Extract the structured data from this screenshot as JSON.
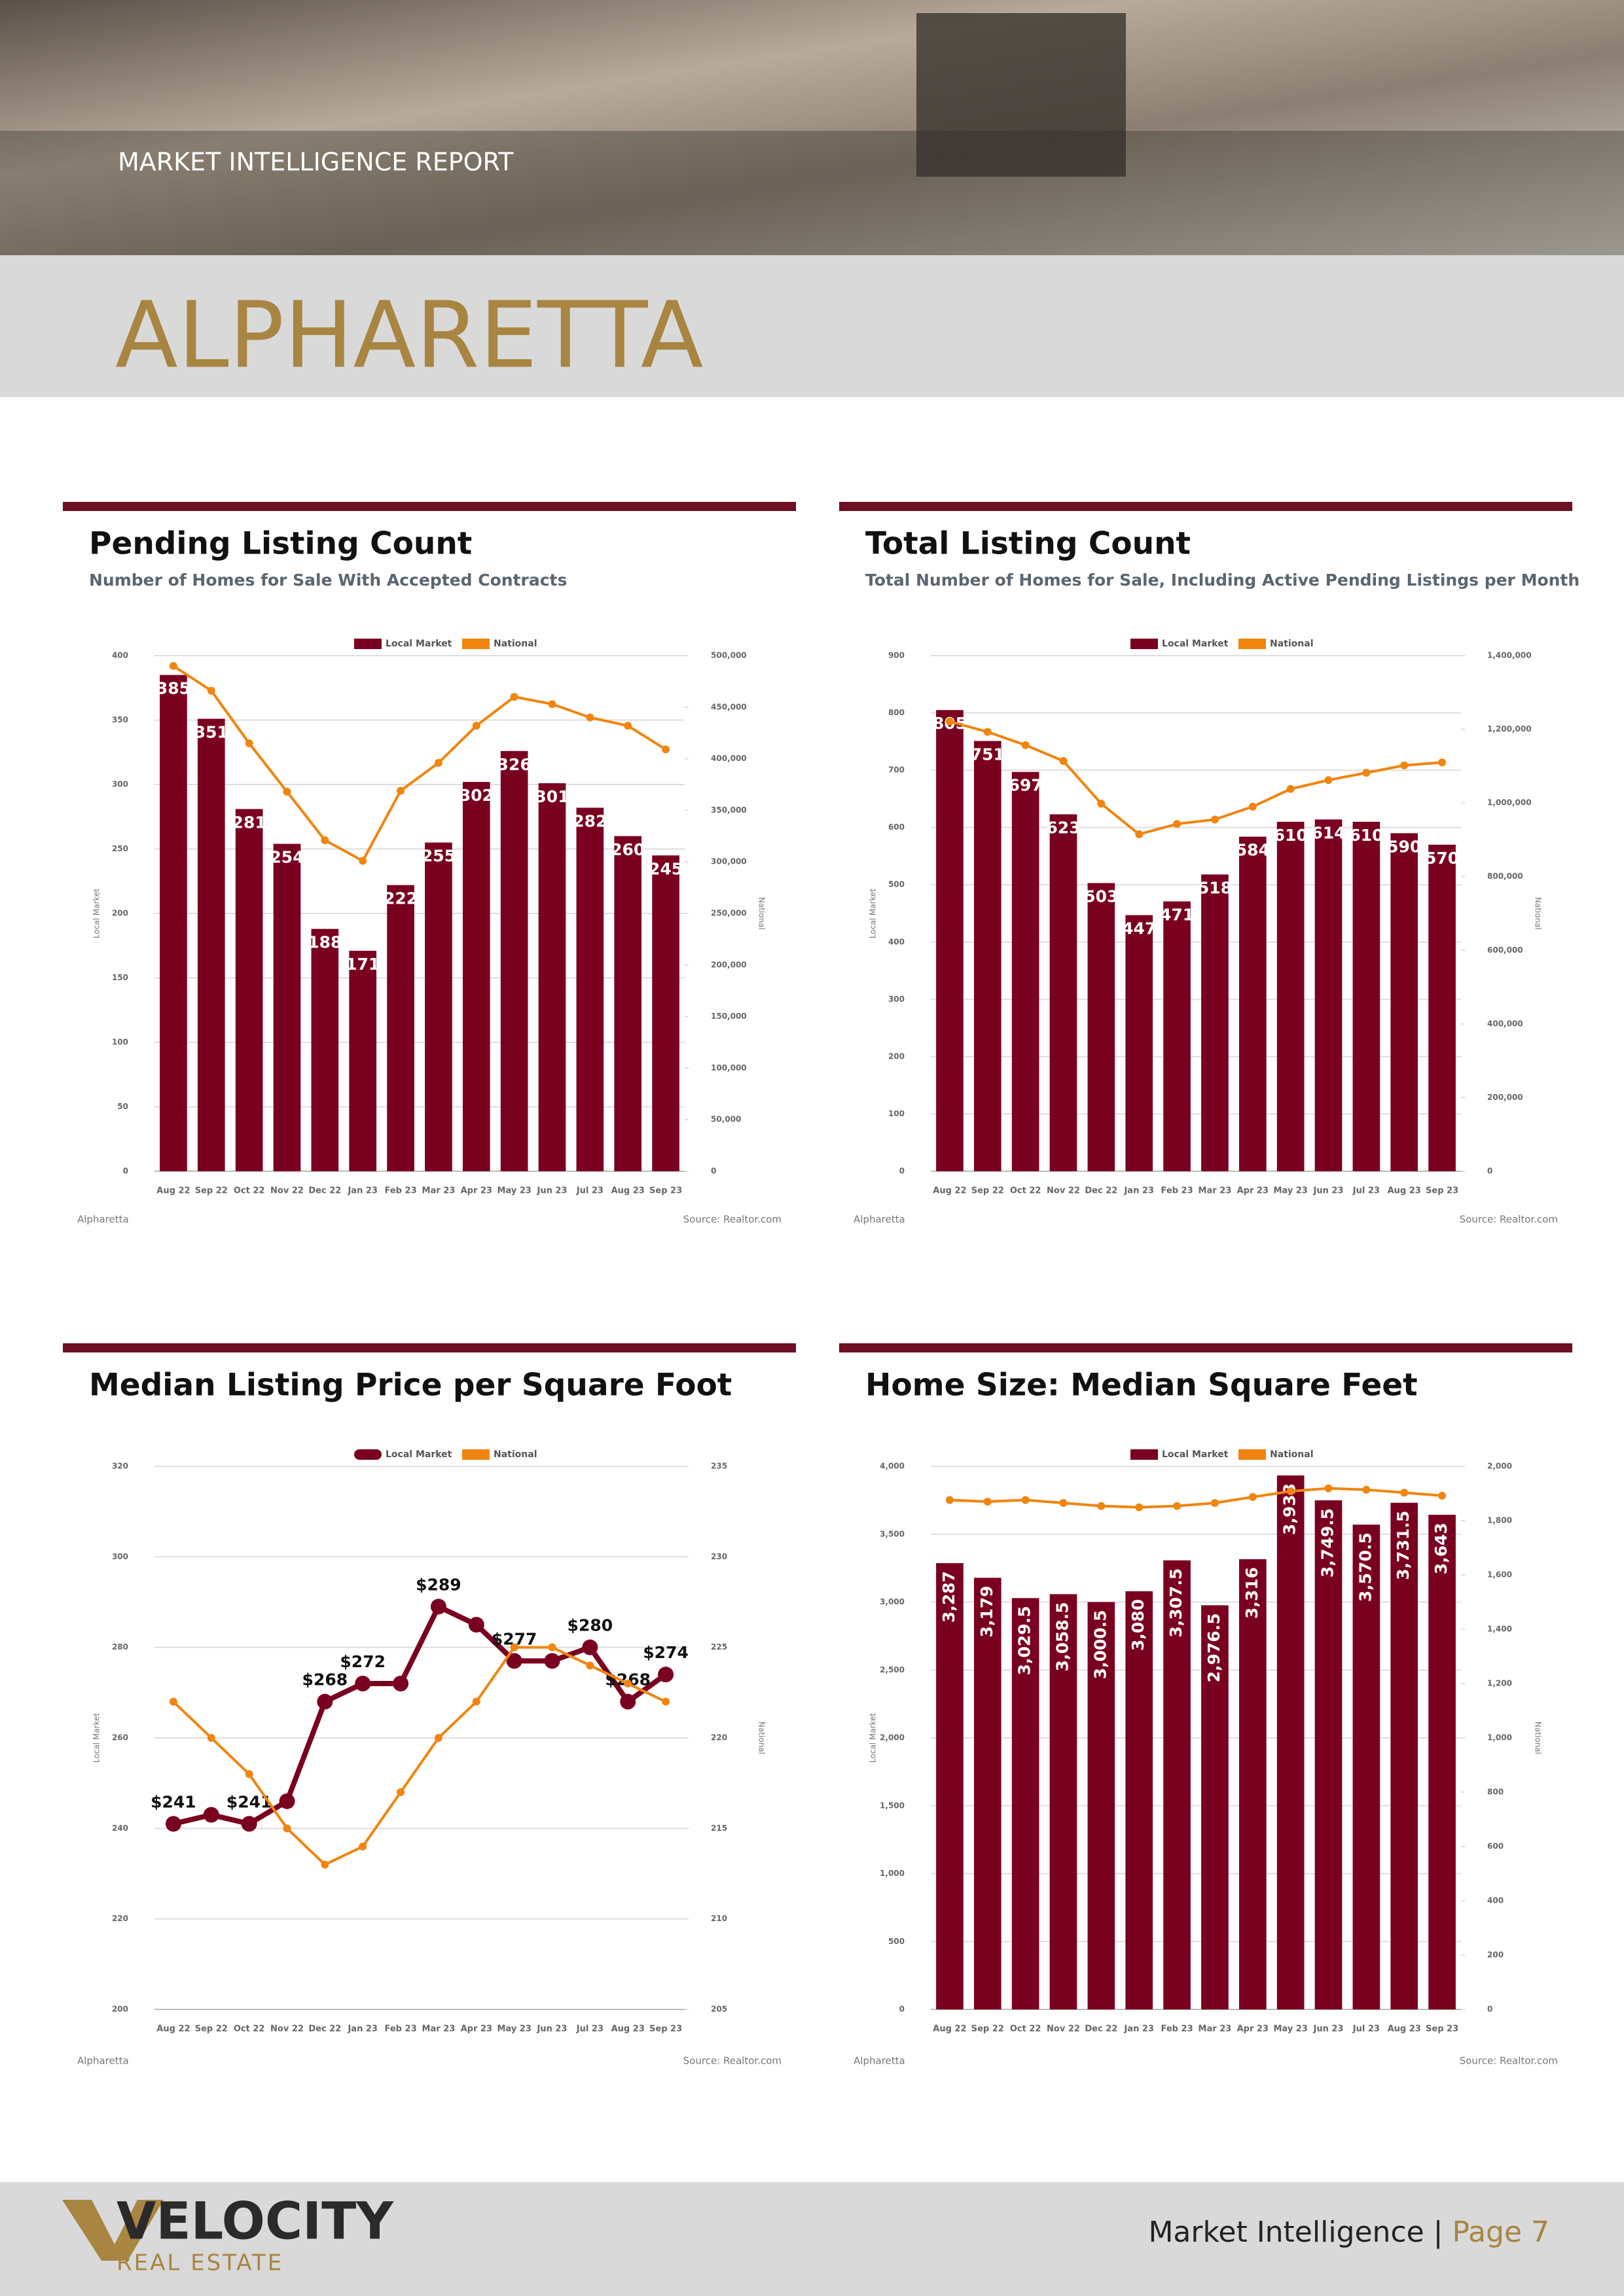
{
  "header": {
    "report_label": "MARKET INTELLIGENCE REPORT",
    "city": "ALPHARETTA"
  },
  "chart_data": [
    {
      "type": "bar",
      "title": "Pending Listing Count",
      "subtitle": "Number of Homes for Sale With Accepted Contracts",
      "categories": [
        "Aug 22",
        "Sep 22",
        "Oct 22",
        "Nov 22",
        "Dec 22",
        "Jan 23",
        "Feb 23",
        "Mar 23",
        "Apr 23",
        "May 23",
        "Jun 23",
        "Jul 23",
        "Aug 23",
        "Sep 23"
      ],
      "y_label": "Local Market",
      "y2_label": "National",
      "series": [
        {
          "name": "Local Market",
          "type": "bar",
          "color": "#7a0020",
          "values": [
            385,
            351,
            281,
            254,
            188,
            171,
            222,
            255,
            302,
            326,
            301,
            282,
            260,
            245
          ]
        },
        {
          "name": "National",
          "type": "line",
          "axis": "y2",
          "color": "#f0850f",
          "values": [
            490000,
            466000,
            415000,
            368000,
            321000,
            301000,
            369000,
            396000,
            432000,
            460000,
            453000,
            440000,
            432000,
            409000
          ]
        }
      ],
      "ylim": [
        0,
        400
      ],
      "yticks": [
        0,
        50,
        100,
        150,
        200,
        250,
        300,
        350,
        400
      ],
      "y2lim": [
        0,
        500000
      ],
      "y2ticks": [
        0,
        {
          "value": 50000,
          "label": "50,000"
        },
        {
          "value": 100000,
          "label": "100,000"
        },
        {
          "value": 150000,
          "label": "150,000"
        },
        {
          "value": 200000,
          "label": "200,000"
        },
        {
          "value": 250000,
          "label": "250,000"
        },
        {
          "value": 300000,
          "label": "300,000"
        },
        {
          "value": 350000,
          "label": "350,000"
        },
        {
          "value": 400000,
          "label": "400,000"
        },
        {
          "value": 450000,
          "label": "450,000"
        },
        {
          "value": 500000,
          "label": "500,000"
        }
      ],
      "grid": true,
      "legend": "top",
      "footnote": "Alpharetta",
      "source": "Source: Realtor.com"
    },
    {
      "type": "bar",
      "title": "Total Listing Count",
      "subtitle": "Total Number of Homes for Sale, Including Active Pending Listings per Month",
      "categories": [
        "Aug 22",
        "Sep 22",
        "Oct 22",
        "Nov 22",
        "Dec 22",
        "Jan 23",
        "Feb 23",
        "Mar 23",
        "Apr 23",
        "May 23",
        "Jun 23",
        "Jul 23",
        "Aug 23",
        "Sep 23"
      ],
      "y_label": "Local Market",
      "y2_label": "National",
      "series": [
        {
          "name": "Local Market",
          "type": "bar",
          "color": "#7a0020",
          "values": [
            805,
            751,
            697,
            623,
            503,
            447,
            471,
            518,
            584,
            610,
            614,
            610,
            590,
            570
          ]
        },
        {
          "name": "National",
          "type": "line",
          "axis": "y2",
          "color": "#f0850f",
          "values": [
            1221000,
            1193000,
            1157000,
            1114000,
            998000,
            915000,
            943000,
            955000,
            990000,
            1038000,
            1062000,
            1082000,
            1102000,
            1110000
          ]
        }
      ],
      "ylim": [
        0,
        900
      ],
      "yticks": [
        0,
        100,
        200,
        300,
        400,
        500,
        600,
        700,
        800,
        900
      ],
      "y2lim": [
        0,
        1400000
      ],
      "y2ticks": [
        0,
        {
          "value": 200000,
          "label": "200,000"
        },
        {
          "value": 400000,
          "label": "400,000"
        },
        {
          "value": 600000,
          "label": "600,000"
        },
        {
          "value": 800000,
          "label": "800,000"
        },
        {
          "value": 1000000,
          "label": "1,000,000"
        },
        {
          "value": 1200000,
          "label": "1,200,000"
        },
        {
          "value": 1400000,
          "label": "1,400,000"
        }
      ],
      "grid": true,
      "legend": "top",
      "footnote": "Alpharetta",
      "source": "Source: Realtor.com"
    },
    {
      "type": "line",
      "title": "Median Listing Price per Square Foot",
      "categories": [
        "Aug 22",
        "Sep 22",
        "Oct 22",
        "Nov 22",
        "Dec 22",
        "Jan 23",
        "Feb 23",
        "Mar 23",
        "Apr 23",
        "May 23",
        "Jun 23",
        "Jul 23",
        "Aug 23",
        "Sep 23"
      ],
      "y_label": "Local Market",
      "y2_label": "National",
      "series": [
        {
          "name": "Local Market",
          "type": "line",
          "color": "#7a0020",
          "values": [
            241,
            243,
            241,
            246,
            268,
            272,
            272,
            289,
            285,
            277,
            277,
            280,
            268,
            274
          ],
          "value_labels": [
            "$241",
            null,
            "$241",
            null,
            "$268",
            "$272",
            null,
            "$289",
            null,
            "$277",
            null,
            "$280",
            "$268",
            "$274"
          ]
        },
        {
          "name": "National",
          "type": "line",
          "axis": "y2",
          "color": "#f0850f",
          "values": [
            222,
            220,
            218,
            215,
            213,
            214,
            217,
            220,
            222,
            225,
            225,
            224,
            223,
            222
          ]
        }
      ],
      "ylim": [
        200,
        320
      ],
      "yticks": [
        200,
        220,
        240,
        260,
        280,
        300,
        320
      ],
      "y2lim": [
        205,
        235
      ],
      "y2ticks": [
        205,
        210,
        215,
        220,
        225,
        230,
        235
      ],
      "grid": true,
      "legend": "top",
      "footnote": "Alpharetta",
      "source": "Source: Realtor.com"
    },
    {
      "type": "bar",
      "title": "Home Size: Median Square Feet",
      "categories": [
        "Aug 22",
        "Sep 22",
        "Oct 22",
        "Nov 22",
        "Dec 22",
        "Jan 23",
        "Feb 23",
        "Mar 23",
        "Apr 23",
        "May 23",
        "Jun 23",
        "Jul 23",
        "Aug 23",
        "Sep 23"
      ],
      "y_label": "Local Market",
      "y2_label": "National",
      "label_rotation": -90,
      "series": [
        {
          "name": "Local Market",
          "type": "bar",
          "color": "#7a0020",
          "values": [
            3287,
            3179,
            3029.5,
            3058.5,
            3000.5,
            3080,
            3307.5,
            2976.5,
            3316,
            3933,
            3749.5,
            3570.5,
            3731.5,
            3643
          ],
          "value_labels": [
            "3,287",
            "3,179",
            "3,029.5",
            "3,058.5",
            "3,000.5",
            "3,080",
            "3,307.5",
            "2,976.5",
            "3,316",
            "3,933",
            "3,749.5",
            "3,570.5",
            "3,731.5",
            "3,643"
          ]
        },
        {
          "name": "National",
          "type": "line",
          "axis": "y2",
          "color": "#f0850f",
          "values": [
            1876,
            1870,
            1876,
            1865,
            1854,
            1849,
            1854,
            1865,
            1887,
            1908,
            1919,
            1914,
            1903,
            1892
          ]
        }
      ],
      "ylim": [
        0,
        4000
      ],
      "yticks": [
        0,
        500,
        {
          "value": 1000,
          "label": "1,000"
        },
        {
          "value": 1500,
          "label": "1,500"
        },
        {
          "value": 2000,
          "label": "2,000"
        },
        {
          "value": 2500,
          "label": "2,500"
        },
        {
          "value": 3000,
          "label": "3,000"
        },
        {
          "value": 3500,
          "label": "3,500"
        },
        {
          "value": 4000,
          "label": "4,000"
        }
      ],
      "y2lim": [
        0,
        2000
      ],
      "y2ticks": [
        0,
        200,
        400,
        600,
        800,
        {
          "value": 1000,
          "label": "1,000"
        },
        {
          "value": 1200,
          "label": "1,200"
        },
        {
          "value": 1400,
          "label": "1,400"
        },
        {
          "value": 1600,
          "label": "1,600"
        },
        {
          "value": 1800,
          "label": "1,800"
        },
        {
          "value": 2000,
          "label": "2,000"
        }
      ],
      "grid": true,
      "legend": "top",
      "footnote": "Alpharetta",
      "source": "Source: Realtor.com"
    }
  ],
  "footer": {
    "logo": "VELOCITY",
    "tagline": "REAL ESTATE",
    "label": "Market Intelligence | ",
    "page": "Page 7"
  }
}
